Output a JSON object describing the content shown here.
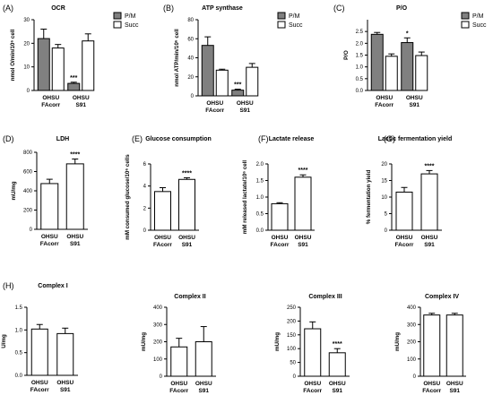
{
  "colors": {
    "filled": "#808080",
    "open": "#ffffff",
    "stroke": "#000000"
  },
  "chart_data": [
    {
      "type": "bar",
      "panel": "(A)",
      "title": "OCR",
      "ylabel": "nmol O/min/10⁶ cell",
      "ylim": [
        0,
        30
      ],
      "yticks": [
        "0",
        "10",
        "20",
        "30"
      ],
      "categories": [
        "OHSU FAcorr",
        "OHSU S91"
      ],
      "cat_lines": [
        [
          "OHSU",
          "FAcorr"
        ],
        [
          "OHSU",
          "S91"
        ]
      ],
      "series": [
        {
          "name": "P/M",
          "values": [
            22,
            3
          ],
          "errors": [
            4,
            0.5
          ]
        },
        {
          "name": "Succ",
          "values": [
            18,
            21
          ],
          "errors": [
            1.5,
            3
          ]
        }
      ],
      "annotations": [
        {
          "series": 0,
          "category": 1,
          "text": "***"
        }
      ],
      "legend": "top-right"
    },
    {
      "type": "bar",
      "panel": "(B)",
      "title": "ATP synthase",
      "ylabel": "nmol ATP/min/10⁶ cell",
      "ylim": [
        0,
        80
      ],
      "yticks": [
        "0",
        "20",
        "40",
        "60",
        "80"
      ],
      "categories": [
        "OHSU FAcorr",
        "OHSU S91"
      ],
      "cat_lines": [
        [
          "OHSU",
          "FAcorr"
        ],
        [
          "OHSU",
          "S91"
        ]
      ],
      "series": [
        {
          "name": "P/M",
          "values": [
            53,
            6
          ],
          "errors": [
            9,
            1
          ]
        },
        {
          "name": "Succ",
          "values": [
            27,
            30
          ],
          "errors": [
            1,
            4
          ]
        }
      ],
      "annotations": [
        {
          "series": 0,
          "category": 1,
          "text": "***"
        }
      ],
      "legend": "top-right"
    },
    {
      "type": "bar",
      "panel": "(C)",
      "title": "P/O",
      "ylabel": "P/O",
      "ylim": [
        0,
        3
      ],
      "yticks": [
        "0.0",
        "0.5",
        "1.0",
        "1.5",
        "2.0",
        "2.5"
      ],
      "categories": [
        "OHSU FAcorr",
        "OHSU S91"
      ],
      "cat_lines": [
        [
          "OHSU",
          "FAcorr"
        ],
        [
          "OHSU",
          "S91"
        ]
      ],
      "series": [
        {
          "name": "P/M",
          "values": [
            2.38,
            2.03
          ],
          "errors": [
            0.08,
            0.2
          ]
        },
        {
          "name": "Succ",
          "values": [
            1.45,
            1.48
          ],
          "errors": [
            0.1,
            0.15
          ]
        }
      ],
      "annotations": [
        {
          "series": 0,
          "category": 1,
          "text": "*"
        }
      ],
      "legend": "top-right"
    },
    {
      "type": "bar",
      "panel": "(D)",
      "title": "LDH",
      "ylabel": "mU/mg",
      "ylim": [
        0,
        800
      ],
      "yticks": [
        "0",
        "200",
        "400",
        "600",
        "800"
      ],
      "categories": [
        "OHSU FAcorr",
        "OHSU S91"
      ],
      "cat_lines": [
        [
          "OHSU",
          "FAcorr"
        ],
        [
          "OHSU",
          "S91"
        ]
      ],
      "series": [
        {
          "name": "",
          "values": [
            475,
            680
          ],
          "errors": [
            45,
            50
          ]
        }
      ],
      "annotations": [
        {
          "series": 0,
          "category": 1,
          "text": "****"
        }
      ]
    },
    {
      "type": "bar",
      "panel": "(E)",
      "title": "Glucose consumption",
      "ylabel": "mM consumed glucose/10⁶ cells",
      "ylim": [
        0,
        6
      ],
      "yticks": [
        "0",
        "2",
        "4",
        "6"
      ],
      "categories": [
        "OHSU FAcorr",
        "OHSU S91"
      ],
      "cat_lines": [
        [
          "OHSU",
          "FAcorr"
        ],
        [
          "OHSU",
          "S91"
        ]
      ],
      "series": [
        {
          "name": "",
          "values": [
            3.5,
            4.6
          ],
          "errors": [
            0.35,
            0.15
          ]
        }
      ],
      "annotations": [
        {
          "series": 0,
          "category": 1,
          "text": "****"
        }
      ]
    },
    {
      "type": "bar",
      "panel": "(F)",
      "title": "Lactate release",
      "ylabel": "mM released lactate/10⁶ cell",
      "ylim": [
        0,
        2.0
      ],
      "yticks": [
        "0.0",
        "0.5",
        "1.0",
        "1.5",
        "2.0"
      ],
      "categories": [
        "OHSU FAcorr",
        "OHSU S91"
      ],
      "cat_lines": [
        [
          "OHSU",
          "FAcorr"
        ],
        [
          "OHSU",
          "S91"
        ]
      ],
      "series": [
        {
          "name": "",
          "values": [
            0.8,
            1.6
          ],
          "errors": [
            0.03,
            0.07
          ]
        }
      ],
      "annotations": [
        {
          "series": 0,
          "category": 1,
          "text": "****"
        }
      ]
    },
    {
      "type": "bar",
      "panel": "(G)",
      "title": "Lactic fermentation yield",
      "ylabel": "% fermentation yield",
      "ylim": [
        0,
        20
      ],
      "yticks": [
        "0",
        "5",
        "10",
        "15",
        "20"
      ],
      "categories": [
        "OHSU FAcorr",
        "OHSU S91"
      ],
      "cat_lines": [
        [
          "OHSU",
          "FAcorr"
        ],
        [
          "OHSU",
          "S91"
        ]
      ],
      "series": [
        {
          "name": "",
          "values": [
            11.5,
            17
          ],
          "errors": [
            1.4,
            1
          ]
        }
      ],
      "annotations": [
        {
          "series": 0,
          "category": 1,
          "text": "****"
        }
      ]
    },
    {
      "type": "bar",
      "panel": "(H)",
      "title": "Complex I",
      "ylabel": "U/mg",
      "ylim": [
        0,
        1.5
      ],
      "yticks": [
        "0.0",
        "0.5",
        "1.0",
        "1.5"
      ],
      "categories": [
        "OHSU FAcorr",
        "OHSU S91"
      ],
      "cat_lines": [
        [
          "OHSU",
          "FAcorr"
        ],
        [
          "OHSU",
          "S91"
        ]
      ],
      "series": [
        {
          "name": "",
          "values": [
            1.02,
            0.92
          ],
          "errors": [
            0.1,
            0.12
          ]
        }
      ],
      "annotations": []
    },
    {
      "type": "bar",
      "panel": "",
      "title": "Complex II",
      "ylabel": "mU/mg",
      "ylim": [
        0,
        400
      ],
      "yticks": [
        "0",
        "100",
        "200",
        "300",
        "400"
      ],
      "categories": [
        "OHSU FAcorr",
        "OHSU S91"
      ],
      "cat_lines": [
        [
          "OHSU",
          "FAcorr"
        ],
        [
          "OHSU",
          "S91"
        ]
      ],
      "series": [
        {
          "name": "",
          "values": [
            170,
            200
          ],
          "errors": [
            50,
            88
          ]
        }
      ],
      "annotations": []
    },
    {
      "type": "bar",
      "panel": "",
      "title": "Complex III",
      "ylabel": "mU/mg",
      "ylim": [
        0,
        250
      ],
      "yticks": [
        "0",
        "50",
        "100",
        "150",
        "200",
        "250"
      ],
      "categories": [
        "OHSU FAcorr",
        "OHSU S91"
      ],
      "cat_lines": [
        [
          "OHSU",
          "FAcorr"
        ],
        [
          "OHSU",
          "S91"
        ]
      ],
      "series": [
        {
          "name": "",
          "values": [
            172,
            85
          ],
          "errors": [
            25,
            15
          ]
        }
      ],
      "annotations": [
        {
          "series": 0,
          "category": 1,
          "text": "****"
        }
      ]
    },
    {
      "type": "bar",
      "panel": "",
      "title": "Complex IV",
      "ylabel": "mU/mg",
      "ylim": [
        0,
        400
      ],
      "yticks": [
        "0",
        "100",
        "200",
        "300",
        "400"
      ],
      "categories": [
        "OHSU FAcorr",
        "OHSU S91"
      ],
      "cat_lines": [
        [
          "OHSU",
          "FAcorr"
        ],
        [
          "OHSU",
          "S91"
        ]
      ],
      "series": [
        {
          "name": "",
          "values": [
            355,
            355
          ],
          "errors": [
            10,
            10
          ]
        }
      ],
      "annotations": []
    }
  ]
}
